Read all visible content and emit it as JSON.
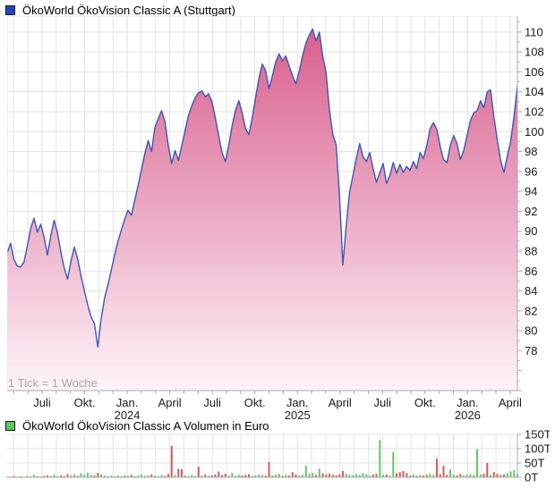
{
  "colors": {
    "price_line": "#3a57b5",
    "area_top": "#d95f8d",
    "area_bottom": "#fdf3f8",
    "price_legend": "#2244bb",
    "volume_legend": "#5dc75d",
    "volume_up": "#6cc06c",
    "volume_down": "#cf5b5b",
    "grid": "#e2e2e2",
    "axis": "#aaaaaa",
    "label_text": "#1a1a1a",
    "note_text": "#a9a9a9"
  },
  "chart_data": [
    {
      "type": "area",
      "title": "ÖkoWorld ÖkoVision Classic A (Stuttgart)",
      "interval_note": "1 Tick = 1 Woche",
      "x_ticks": [
        {
          "label": "Juli",
          "month": 2
        },
        {
          "label": "Okt.",
          "month": 5
        },
        {
          "label": "Jan.",
          "year": "2024",
          "month": 8
        },
        {
          "label": "April",
          "month": 11
        },
        {
          "label": "Juli",
          "month": 14
        },
        {
          "label": "Okt.",
          "month": 17
        },
        {
          "label": "Jan.",
          "year": "2025",
          "month": 20
        },
        {
          "label": "April",
          "month": 23
        },
        {
          "label": "Juli",
          "month": 26
        },
        {
          "label": "Okt.",
          "month": 29
        },
        {
          "label": "Jan.",
          "year": "2026",
          "month": 32
        },
        {
          "label": "April",
          "month": 35
        }
      ],
      "months_total": 35,
      "y_ticks": [
        110,
        108,
        106,
        104,
        102,
        100,
        98,
        96,
        94,
        92,
        90,
        88,
        86,
        84,
        82,
        80,
        78
      ],
      "y_range": [
        74.0,
        111.6
      ],
      "values": [
        87.8,
        88.8,
        87.2,
        86.5,
        86.4,
        86.9,
        88.5,
        90.3,
        91.3,
        89.9,
        90.7,
        89.4,
        87.6,
        89.6,
        91.1,
        89.8,
        87.9,
        86.3,
        85.2,
        87.0,
        88.4,
        87.2,
        85.5,
        84.0,
        82.6,
        81.4,
        80.7,
        78.4,
        81.2,
        83.3,
        84.6,
        86.1,
        87.6,
        89.0,
        90.1,
        91.2,
        92.1,
        91.6,
        93.1,
        94.6,
        96.2,
        97.8,
        99.1,
        98.0,
        100.4,
        101.3,
        102.1,
        101.0,
        98.6,
        96.8,
        98.1,
        97.1,
        98.6,
        100.1,
        101.6,
        102.6,
        103.4,
        103.9,
        104.1,
        103.5,
        103.8,
        103.0,
        101.4,
        99.6,
        97.9,
        97.0,
        98.6,
        100.6,
        102.1,
        103.1,
        101.9,
        100.3,
        99.7,
        101.4,
        103.4,
        105.4,
        106.8,
        106.1,
        104.3,
        105.6,
        107.0,
        107.8,
        107.1,
        107.6,
        106.6,
        105.6,
        104.8,
        106.1,
        107.6,
        108.9,
        109.7,
        110.3,
        109.1,
        110.0,
        107.6,
        105.9,
        102.2,
        99.7,
        98.7,
        93.5,
        86.6,
        90.6,
        93.9,
        95.6,
        97.3,
        98.8,
        97.5,
        97.0,
        97.9,
        96.3,
        94.9,
        95.9,
        96.8,
        94.8,
        95.6,
        96.9,
        95.8,
        96.7,
        95.9,
        96.5,
        96.1,
        97.0,
        96.3,
        97.9,
        97.3,
        98.6,
        100.3,
        100.9,
        100.2,
        98.5,
        97.2,
        96.9,
        98.6,
        99.6,
        98.8,
        97.2,
        98.1,
        99.6,
        101.1,
        101.9,
        102.1,
        103.1,
        102.4,
        104.0,
        104.2,
        101.4,
        99.2,
        97.1,
        95.9,
        97.6,
        99.0,
        101.6,
        104.6
      ]
    },
    {
      "type": "bar",
      "title": "ÖkoWorld ÖkoVision Classic A Volumen in Euro",
      "y_ticks": [
        "150T",
        "100T",
        "50T",
        "0T"
      ],
      "values_thousands": [
        3,
        2,
        4,
        2,
        3,
        2,
        5,
        3,
        8,
        4,
        3,
        5,
        7,
        4,
        9,
        3,
        6,
        4,
        11,
        6,
        9,
        5,
        14,
        10,
        16,
        9,
        7,
        15,
        10,
        6,
        4,
        5,
        3,
        6,
        4,
        7,
        5,
        8,
        4,
        6,
        9,
        5,
        7,
        10,
        6,
        4,
        8,
        5,
        12,
        110,
        9,
        30,
        28,
        7,
        5,
        8,
        4,
        37,
        6,
        9,
        5,
        7,
        10,
        20,
        8,
        12,
        6,
        15,
        5,
        9,
        6,
        8,
        11,
        5,
        7,
        10,
        8,
        6,
        53,
        7,
        9,
        12,
        5,
        8,
        6,
        18,
        10,
        7,
        9,
        40,
        12,
        15,
        8,
        30,
        14,
        10,
        12,
        9,
        7,
        10,
        22,
        12,
        9,
        7,
        11,
        8,
        15,
        10,
        6,
        9,
        12,
        130,
        8,
        10,
        6,
        88,
        14,
        18,
        22,
        15,
        7,
        9,
        5,
        8,
        6,
        10,
        12,
        9,
        65,
        11,
        40,
        8,
        27,
        10,
        7,
        12,
        6,
        9,
        11,
        8,
        98,
        10,
        12,
        50,
        9,
        18,
        12,
        8,
        10,
        14,
        20,
        25,
        12
      ],
      "color_sequence": "grrgrggggrgrrggrrrrggrggggrrgggggggggrgggggrgggrrrgrrggggrgrgrrrrrggggrrrggggrrgggrgrrrgggggrgrrrrrrrggggggggrrggrggrrrrggrgrgggrrrrggrrggggggrrgrrrrgggg"
    }
  ]
}
